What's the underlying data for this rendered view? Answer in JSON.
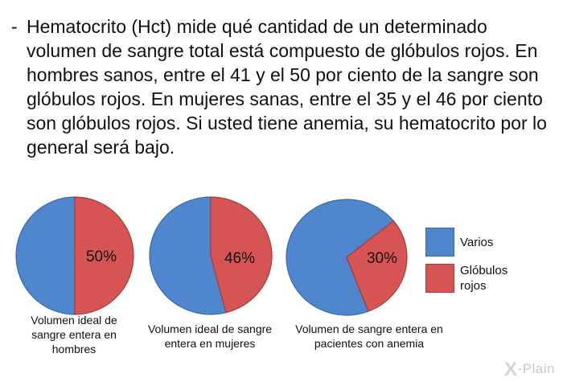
{
  "paragraph": {
    "dash": "-",
    "text": "Hematocrito (Hct) mide qué cantidad de un determinado volumen de sangre total está compuesto de glóbulos rojos. En hombres sanos, entre el 41 y el 50 por ciento de la sangre son glóbulos rojos. En mujeres sanas, entre el 35 y el 46 por ciento son glóbulos rojos. Si usted tiene anemia, su hematocrito por lo general será bajo."
  },
  "chart_data": [
    {
      "type": "pie",
      "categories": [
        "Varios",
        "Glóbulos rojos"
      ],
      "values": [
        50,
        50
      ],
      "data_label": "50%",
      "caption": "Volumen ideal de sangre entera en hombres"
    },
    {
      "type": "pie",
      "categories": [
        "Varios",
        "Glóbulos rojos"
      ],
      "values": [
        54,
        46
      ],
      "data_label": "46%",
      "caption": "Volumen ideal de sangre entera en mujeres"
    },
    {
      "type": "pie",
      "categories": [
        "Varios",
        "Glóbulos rojos"
      ],
      "values": [
        70,
        30
      ],
      "data_label": "30%",
      "caption": "Volumen de sangre entera en pacientes con anemia"
    }
  ],
  "legend": {
    "items": [
      {
        "label": "Varios",
        "color": "#4f86cd"
      },
      {
        "label": "Glóbulos rojos",
        "color": "#d65454"
      }
    ],
    "placement": "right"
  },
  "colors": {
    "varios": "#4f86cd",
    "globulos": "#d65454"
  },
  "watermark": {
    "mark": "X",
    "text": "-Plain"
  }
}
